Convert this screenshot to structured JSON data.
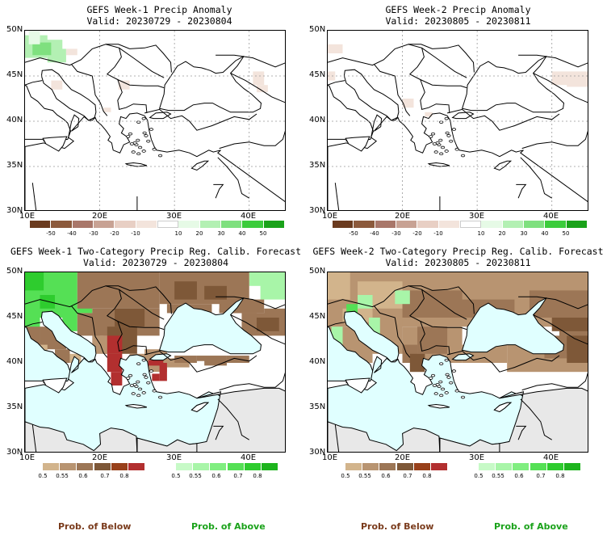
{
  "panels": [
    {
      "title_line1": "GEFS Week-1 Precip Anomaly",
      "title_line2": "Valid: 20230729 - 20230804",
      "type": "anomaly",
      "week": 1
    },
    {
      "title_line1": "GEFS Week-2 Precip Anomaly",
      "title_line2": "Valid: 20230805 - 20230811",
      "type": "anomaly",
      "week": 2
    },
    {
      "title_line1": "GEFS Week-1 Two-Category Precip Reg. Calib. Forecast",
      "title_line2": "Valid: 20230729 - 20230804",
      "type": "prob",
      "week": 1
    },
    {
      "title_line1": "GEFS Week-2 Two-Category Precip Reg. Calib. Forecast",
      "title_line2": "Valid: 20230805 - 20230811",
      "type": "prob",
      "week": 2
    }
  ],
  "axes": {
    "lat_labels": [
      "50N",
      "45N",
      "40N",
      "35N",
      "30N"
    ],
    "lon_labels": [
      "10E",
      "20E",
      "30E",
      "40E"
    ]
  },
  "anomaly_colorbar": {
    "ticks": [
      "-50",
      "-40",
      "-30",
      "-20",
      "-10",
      "10",
      "20",
      "30",
      "40",
      "50"
    ],
    "colors": [
      "#6b3b1f",
      "#8c5a3c",
      "#a9776a",
      "#c8a294",
      "#e8cfc4",
      "#f3e4dc",
      "#ffffff",
      "#e6fae6",
      "#b3f0b3",
      "#7fe07f",
      "#3ccc3c",
      "#1aa21a"
    ]
  },
  "prob_colorbars": {
    "below": {
      "ticks": [
        "0.5",
        "0.55",
        "0.6",
        "0.7",
        "0.8"
      ],
      "colors": [
        "#d2b48c",
        "#b89471",
        "#9c7656",
        "#7e5838",
        "#98401a",
        "#b22f2f"
      ]
    },
    "above": {
      "ticks": [
        "0.5",
        "0.55",
        "0.6",
        "0.7",
        "0.8"
      ],
      "colors": [
        "#c7fac7",
        "#a8f5a8",
        "#80ee80",
        "#55e055",
        "#2ecc2e",
        "#1db41d"
      ]
    }
  },
  "captions": {
    "below_left": "Prob. of Below",
    "above_left": "Prob. of Above",
    "below_right": "Prob. of Below",
    "above_right": "Prob. of Above"
  },
  "colors": {
    "water": "#e0ffff",
    "no_data": "#e8e8e8",
    "brown_dark": "#7e5838",
    "brown_mid": "#9c7656",
    "brown_light": "#b89471",
    "tan": "#d2b48c",
    "red": "#b22f2f",
    "green_light": "#a8f5a8",
    "green_mid": "#55e055",
    "green_dark": "#2ecc2e"
  }
}
